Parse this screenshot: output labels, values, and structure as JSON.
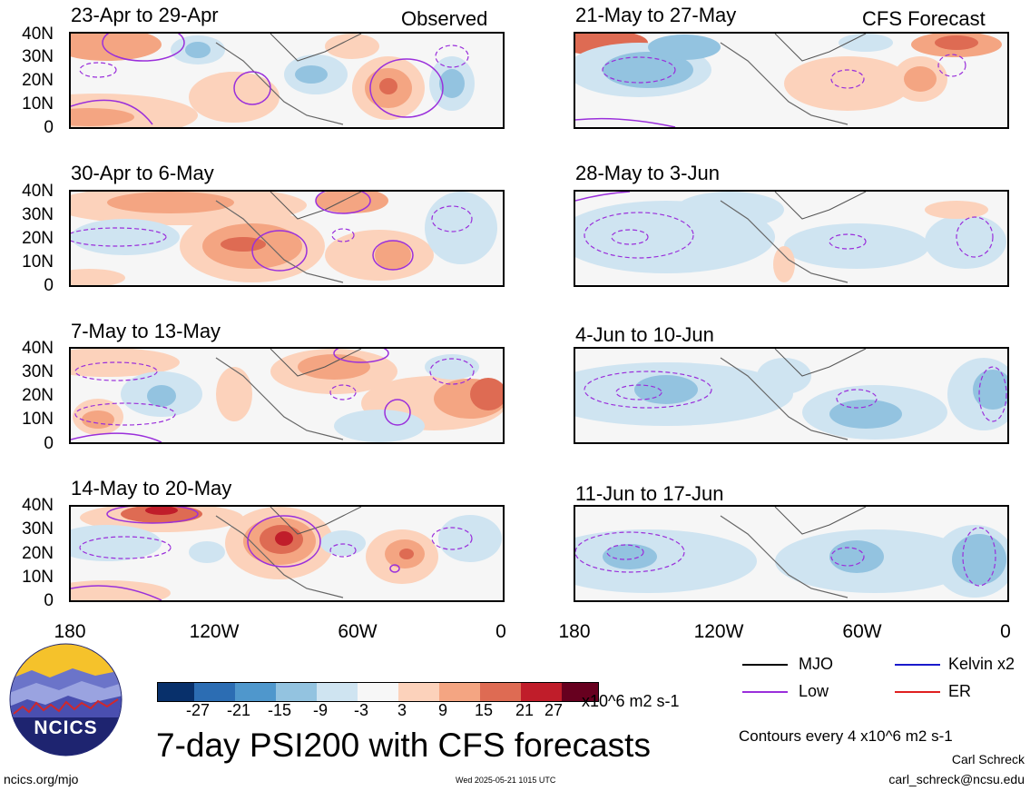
{
  "panels": {
    "p1": {
      "title": "23-Apr to 29-Apr",
      "tag": "Observed"
    },
    "p2": {
      "title": "21-May to 27-May",
      "tag": "CFS Forecast"
    },
    "p3": {
      "title": "30-Apr to 6-May"
    },
    "p4": {
      "title": "28-May to 3-Jun"
    },
    "p5": {
      "title": "7-May to 13-May"
    },
    "p6": {
      "title": "4-Jun to 10-Jun"
    },
    "p7": {
      "title": "14-May to 20-May"
    },
    "p8": {
      "title": "11-Jun to 17-Jun"
    }
  },
  "y_ticks": [
    "40N",
    "30N",
    "20N",
    "10N",
    "0"
  ],
  "x_ticks": [
    "180",
    "120W",
    "60W",
    "0"
  ],
  "colorbar": {
    "colors": [
      "#08306b",
      "#2c6db3",
      "#4f97cc",
      "#93c3e0",
      "#cfe4f1",
      "#f7f7f7",
      "#fcd2bb",
      "#f4a582",
      "#de6b53",
      "#c01d2a",
      "#67001f"
    ],
    "ticks": [
      "-27",
      "-21",
      "-15",
      "-9",
      "-3",
      "3",
      "9",
      "15",
      "21",
      "27"
    ],
    "units": "x10^6 m2 s-1"
  },
  "title": "7-day PSI200 with CFS forecasts",
  "logo": {
    "text": "NCICS"
  },
  "legend": {
    "mjo": {
      "label": "MJO",
      "color": "#000000"
    },
    "kelvin": {
      "label": "Kelvin x2",
      "color": "#1a1acc"
    },
    "low": {
      "label": "Low",
      "color": "#9a2fdb"
    },
    "er": {
      "label": "ER",
      "color": "#e02020"
    }
  },
  "contour_note": "Contours every 4 x10^6 m2 s-1",
  "author": "Carl Schreck",
  "email": "carl_schreck@ncsu.edu",
  "site": "ncics.org/mjo",
  "timestamp": "Wed 2025-05-21 1015 UTC"
}
